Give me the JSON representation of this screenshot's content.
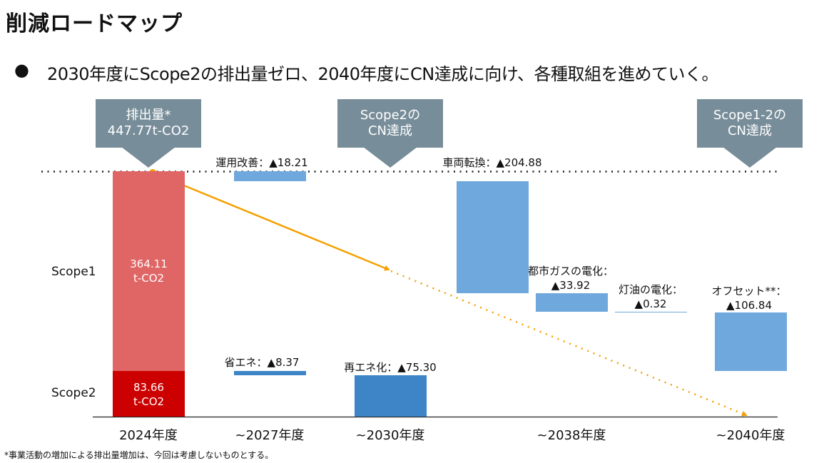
{
  "title": "削減ロードマップ",
  "bullet": {
    "marker": "●",
    "text": "2030年度にScope2の排出量ゼロ、2040年度にCN達成に向け、各種取組を進めていく。"
  },
  "callouts": [
    {
      "line1": "排出量*",
      "line2": "447.77t-CO2"
    },
    {
      "line1": "Scope2の",
      "line2": "CN達成"
    },
    {
      "line1": "Scope1-2の",
      "line2": "CN達成"
    }
  ],
  "footnote": "*事業活動の増加による排出量増加は、今回は考慮しないものとする。",
  "colors": {
    "scope1": "#e06666",
    "scope2": "#cc0000",
    "reduction_scope1": "#6fa8dc",
    "reduction_scope2": "#3d85c6",
    "trend": "#f5a000",
    "callout": "#778d99"
  },
  "chart_data": {
    "type": "waterfall",
    "unit": "t-CO2",
    "ylim": [
      0,
      447.77
    ],
    "row_labels": [
      "Scope1",
      "Scope2"
    ],
    "x_ticks": [
      "2024年度",
      "~2027年度",
      "~2030年度",
      "~2038年度",
      "~2040年度"
    ],
    "baseline": {
      "category": "2024年度",
      "scope1": 364.11,
      "scope2": 83.66,
      "scope1_label": "364.11\nt-CO2",
      "scope2_label": "83.66\nt-CO2",
      "total": 447.77
    },
    "reductions": [
      {
        "label": "運用改善：▲18.21",
        "value": 18.21,
        "scope": "Scope1",
        "period": "~2027年度"
      },
      {
        "label": "省エネ：▲8.37",
        "value": 8.37,
        "scope": "Scope2",
        "period": "~2027年度"
      },
      {
        "label": "再エネ化：▲75.30",
        "value": 75.3,
        "scope": "Scope2",
        "period": "~2030年度"
      },
      {
        "label": "車両転換：▲204.88",
        "value": 204.88,
        "scope": "Scope1",
        "period": "~2038年度"
      },
      {
        "label": "都市ガスの電化：\n▲33.92",
        "value": 33.92,
        "scope": "Scope1",
        "period": "~2038年度"
      },
      {
        "label": "灯油の電化：\n▲0.32",
        "value": 0.32,
        "scope": "Scope1",
        "period": "~2038年度"
      },
      {
        "label": "オフセット**：\n▲106.84",
        "value": 106.84,
        "scope": "Scope1",
        "period": "~2040年度"
      }
    ]
  }
}
